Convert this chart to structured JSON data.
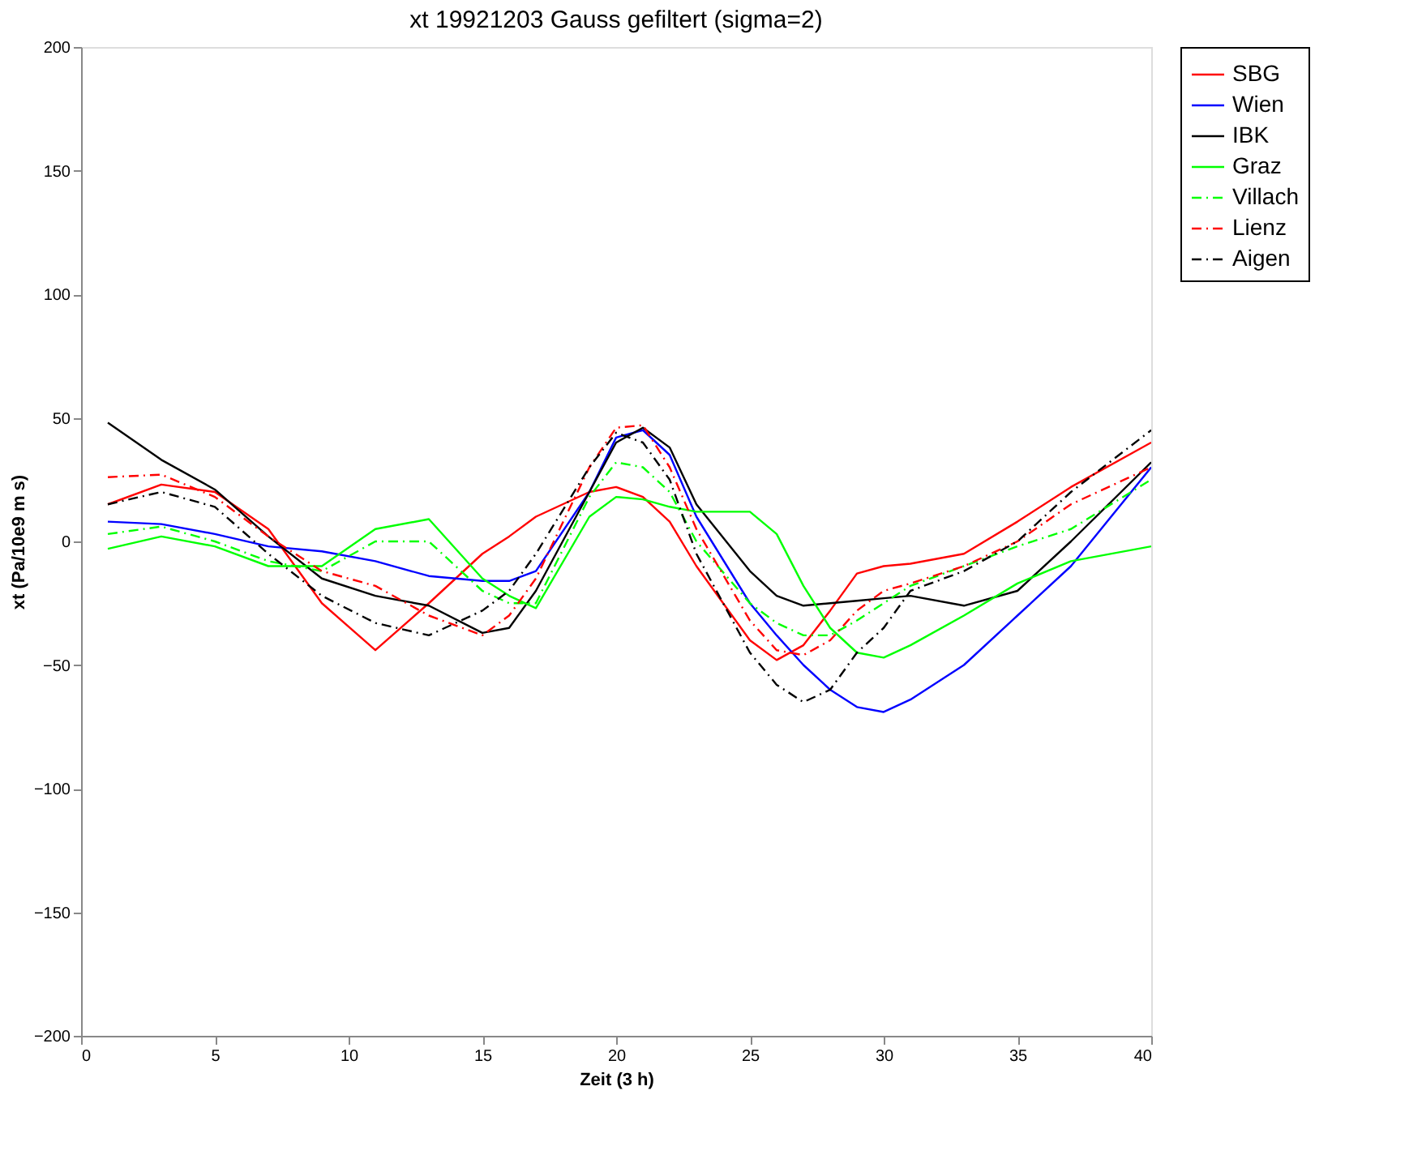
{
  "chart_data": {
    "type": "line",
    "title": "xt 19921203 Gauss gefiltert (sigma=2)",
    "xlabel": "Zeit (3 h)",
    "ylabel": "xt (Pa/10e9 m s)",
    "x": [
      1,
      3,
      5,
      7,
      9,
      11,
      13,
      15,
      16,
      17,
      19,
      20,
      21,
      22,
      23,
      25,
      26,
      27,
      28,
      29,
      30,
      31,
      33,
      35,
      37,
      40
    ],
    "series": [
      {
        "name": "SBG",
        "color": "#ff0000",
        "line_style": "solid",
        "values": [
          15,
          23,
          20,
          5,
          -25,
          -44,
          -25,
          -5,
          2,
          10,
          20,
          22,
          18,
          8,
          -10,
          -40,
          -48,
          -42,
          -28,
          -13,
          -10,
          -9,
          -5,
          8,
          22,
          40
        ]
      },
      {
        "name": "Wien",
        "color": "#0000ff",
        "line_style": "solid",
        "values": [
          8,
          7,
          3,
          -2,
          -4,
          -8,
          -14,
          -16,
          -16,
          -12,
          20,
          42,
          45,
          35,
          10,
          -25,
          -38,
          -50,
          -60,
          -67,
          -69,
          -64,
          -50,
          -30,
          -10,
          30
        ]
      },
      {
        "name": "IBK",
        "color": "#000000",
        "line_style": "solid",
        "values": [
          48,
          33,
          21,
          2,
          -15,
          -22,
          -26,
          -37,
          -35,
          -20,
          20,
          40,
          46,
          38,
          15,
          -12,
          -22,
          -26,
          -25,
          -24,
          -23,
          -22,
          -26,
          -20,
          0,
          32
        ]
      },
      {
        "name": "Graz",
        "color": "#00ff00",
        "line_style": "solid",
        "values": [
          -3,
          2,
          -2,
          -10,
          -10,
          5,
          9,
          -15,
          -22,
          -27,
          10,
          18,
          17,
          14,
          12,
          12,
          3,
          -18,
          -35,
          -45,
          -47,
          -42,
          -30,
          -17,
          -8,
          -2
        ]
      },
      {
        "name": "Villach",
        "color": "#00ff00",
        "line_style": "dashdot",
        "values": [
          3,
          6,
          0,
          -8,
          -12,
          0,
          0,
          -20,
          -25,
          -25,
          18,
          32,
          30,
          20,
          0,
          -25,
          -33,
          -38,
          -38,
          -32,
          -25,
          -18,
          -10,
          -2,
          5,
          25
        ]
      },
      {
        "name": "Lienz",
        "color": "#ff0000",
        "line_style": "dashdot",
        "values": [
          26,
          27,
          18,
          2,
          -12,
          -18,
          -30,
          -38,
          -30,
          -15,
          30,
          46,
          47,
          30,
          5,
          -32,
          -44,
          -46,
          -40,
          -28,
          -20,
          -17,
          -10,
          0,
          15,
          30
        ]
      },
      {
        "name": "Aigen",
        "color": "#000000",
        "line_style": "dashdot",
        "values": [
          15,
          20,
          14,
          -5,
          -22,
          -33,
          -38,
          -28,
          -20,
          -5,
          30,
          44,
          40,
          25,
          -5,
          -45,
          -58,
          -65,
          -60,
          -45,
          -35,
          -20,
          -12,
          0,
          20,
          45
        ]
      }
    ],
    "xlim": [
      0,
      40
    ],
    "xticks": [
      0,
      5,
      10,
      15,
      20,
      25,
      30,
      35,
      40
    ],
    "ylim": [
      -200,
      200
    ],
    "yticks": [
      -200,
      -150,
      -100,
      -50,
      0,
      50,
      100,
      150,
      200
    ],
    "grid": false,
    "legend": "top right"
  }
}
